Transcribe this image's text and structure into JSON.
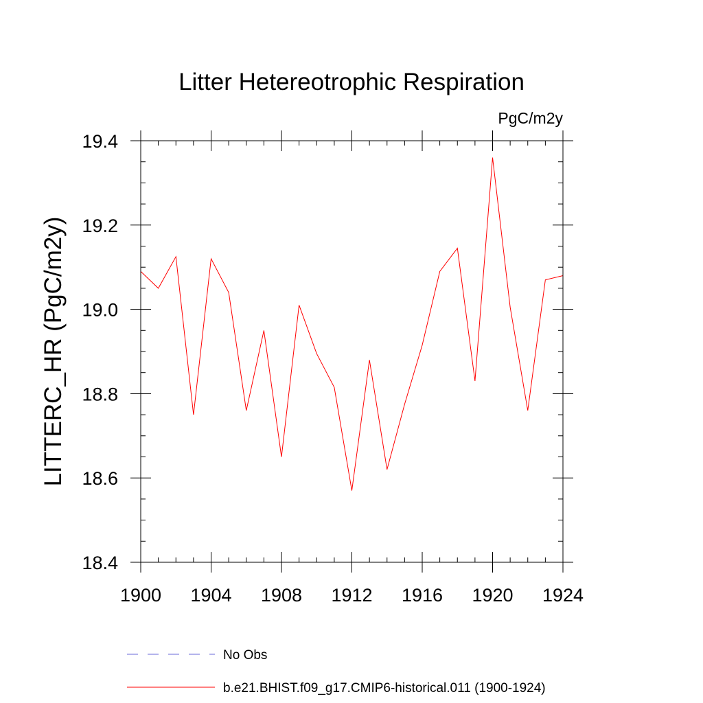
{
  "chart_data": {
    "type": "line",
    "title": "Litter Hetereotrophic Respiration",
    "units_label": "PgC/m2y",
    "ylabel": "LITTERC_HR  (PgC/m2y)",
    "xlabel": "",
    "xlim": [
      1900,
      1924
    ],
    "ylim": [
      18.4,
      19.4
    ],
    "x_ticks": [
      1900,
      1904,
      1908,
      1912,
      1916,
      1920,
      1924
    ],
    "x_tick_labels": [
      "1900",
      "1904",
      "1908",
      "1912",
      "1916",
      "1920",
      "1924"
    ],
    "y_ticks": [
      18.4,
      18.6,
      18.8,
      19.0,
      19.2,
      19.4
    ],
    "y_tick_labels": [
      "18.4",
      "18.6",
      "18.8",
      "19.0",
      "19.2",
      "19.4"
    ],
    "grid": false,
    "legend_position": "bottom",
    "series": [
      {
        "name": "b.e21.BHIST.f09_g17.CMIP6-historical.011 (1900-1924)",
        "color": "#ff0000",
        "style": "solid",
        "x": [
          1900,
          1901,
          1902,
          1903,
          1904,
          1905,
          1906,
          1907,
          1908,
          1909,
          1910,
          1911,
          1912,
          1913,
          1914,
          1915,
          1916,
          1917,
          1918,
          1919,
          1920,
          1921,
          1922,
          1923,
          1924
        ],
        "values": [
          19.09,
          19.05,
          19.125,
          18.75,
          19.12,
          19.04,
          18.76,
          18.95,
          18.65,
          19.01,
          18.895,
          18.815,
          18.57,
          18.88,
          18.62,
          18.775,
          18.915,
          19.09,
          19.145,
          18.83,
          19.36,
          19.005,
          18.76,
          19.07,
          19.08
        ]
      }
    ],
    "legend": [
      {
        "label": "No Obs",
        "color": "#6a6ad8",
        "style": "dashed"
      },
      {
        "label": "b.e21.BHIST.f09_g17.CMIP6-historical.011 (1900-1924)",
        "color": "#ff0000",
        "style": "solid"
      }
    ]
  }
}
